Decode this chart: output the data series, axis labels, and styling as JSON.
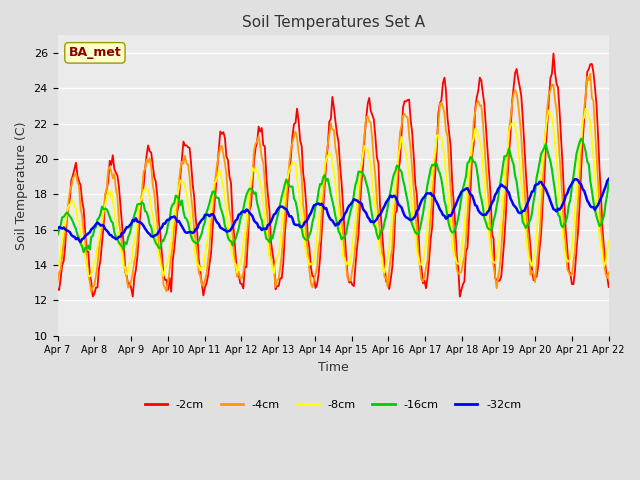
{
  "title": "Soil Temperatures Set A",
  "xlabel": "Time",
  "ylabel": "Soil Temperature (C)",
  "ylim": [
    10,
    27
  ],
  "annotation_text": "BA_met",
  "legend_labels": [
    "-2cm",
    "-4cm",
    "-8cm",
    "-16cm",
    "-32cm"
  ],
  "legend_colors": [
    "#ff0000",
    "#ff9900",
    "#ffff00",
    "#00cc00",
    "#0000ff"
  ],
  "bg_color": "#e0e0e0",
  "plot_bg_color": "#ebebeb",
  "xtick_labels": [
    "Apr 7",
    "Apr 8",
    "Apr 9",
    "Apr 10",
    "Apr 11",
    "Apr 12",
    "Apr 13",
    "Apr 14",
    "Apr 15",
    "Apr 16",
    "Apr 17",
    "Apr 18",
    "Apr 19",
    "Apr 20",
    "Apr 21",
    "Apr 22"
  ],
  "n_points_per_day": 24,
  "n_days": 15
}
